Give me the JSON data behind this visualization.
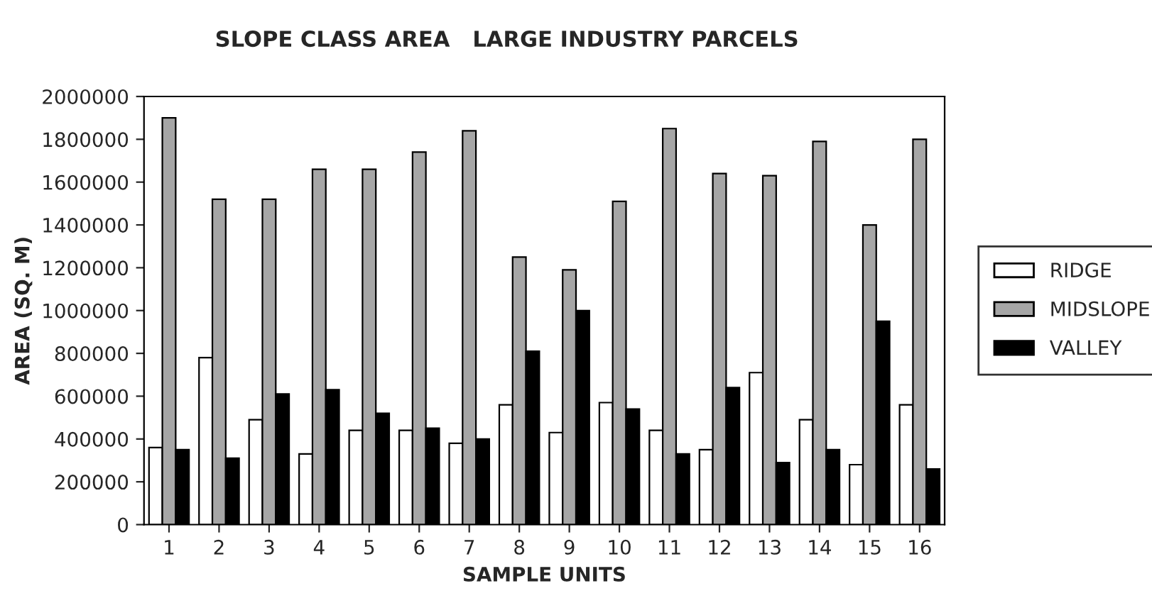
{
  "chart_data": {
    "type": "bar",
    "title": "SLOPE CLASS AREA   LARGE INDUSTRY PARCELS",
    "xlabel": "SAMPLE UNITS",
    "ylabel": "AREA (SQ. M)",
    "categories": [
      "1",
      "2",
      "3",
      "4",
      "5",
      "6",
      "7",
      "8",
      "9",
      "10",
      "11",
      "12",
      "13",
      "14",
      "15",
      "16"
    ],
    "series": [
      {
        "name": "RIDGE",
        "color": "#ffffff",
        "values": [
          360000,
          780000,
          490000,
          330000,
          440000,
          440000,
          380000,
          560000,
          430000,
          570000,
          440000,
          350000,
          710000,
          490000,
          280000,
          560000
        ]
      },
      {
        "name": "MIDSLOPE",
        "color": "#a6a6a6",
        "values": [
          1900000,
          1520000,
          1520000,
          1660000,
          1660000,
          1740000,
          1840000,
          1250000,
          1190000,
          1510000,
          1850000,
          1640000,
          1630000,
          1790000,
          1400000,
          1800000
        ]
      },
      {
        "name": "VALLEY",
        "color": "#000000",
        "values": [
          350000,
          310000,
          610000,
          630000,
          520000,
          450000,
          400000,
          810000,
          1000000,
          540000,
          330000,
          640000,
          290000,
          350000,
          950000,
          260000
        ]
      }
    ],
    "ylim": [
      0,
      2000000
    ],
    "yticks": [
      0,
      200000,
      400000,
      600000,
      800000,
      1000000,
      1200000,
      1400000,
      1600000,
      1800000,
      2000000
    ],
    "grid": false,
    "legend": "right"
  }
}
